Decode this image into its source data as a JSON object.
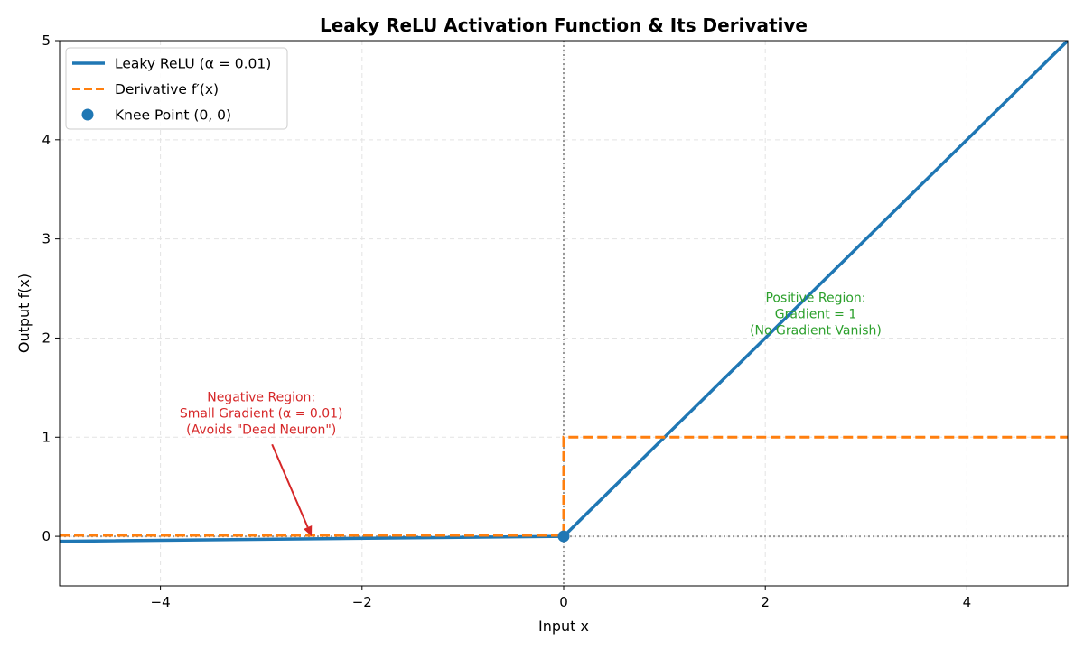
{
  "chart_data": {
    "type": "line",
    "title": "Leaky ReLU Activation Function & Its Derivative",
    "xlabel": "Input x",
    "ylabel": "Output f(x)",
    "xlim": [
      -5,
      5
    ],
    "ylim": [
      -0.5,
      5
    ],
    "x_ticks": [
      -4,
      -2,
      0,
      2,
      4
    ],
    "x_tick_labels": [
      "−4",
      "−2",
      "0",
      "2",
      "4"
    ],
    "y_ticks": [
      0,
      1,
      2,
      3,
      4,
      5
    ],
    "y_tick_labels": [
      "0",
      "1",
      "2",
      "3",
      "4",
      "5"
    ],
    "grid": true,
    "legend_position": "upper-left",
    "alpha": 0.01,
    "series": [
      {
        "name": "Leaky ReLU (α = 0.01)",
        "style": "solid",
        "color": "#1f77b4",
        "x": [
          -5,
          0,
          5
        ],
        "y": [
          -0.05,
          0,
          5
        ]
      },
      {
        "name": "Derivative f′(x)",
        "style": "dashed",
        "color": "#ff7f0e",
        "x": [
          -5,
          0,
          0,
          5
        ],
        "y": [
          0.01,
          0.01,
          1,
          1
        ]
      }
    ],
    "points": [
      {
        "name": "Knee Point (0, 0)",
        "x": 0,
        "y": 0,
        "color": "#1f77b4"
      }
    ],
    "reference_lines": [
      {
        "orientation": "horizontal",
        "value": 0,
        "color": "#999999",
        "style": "dotted"
      },
      {
        "orientation": "vertical",
        "value": 0,
        "color": "#999999",
        "style": "dotted"
      }
    ],
    "annotations": [
      {
        "lines": [
          "Negative Region:",
          "Small Gradient (α = 0.01)",
          "(Avoids \"Dead Neuron\")"
        ],
        "color": "#d62728",
        "text_x": -3.0,
        "text_y": 1.0,
        "arrow_to": [
          -2.5,
          0.0
        ]
      },
      {
        "lines": [
          "Positive Region:",
          "Gradient = 1",
          "(No Gradient Vanish)"
        ],
        "color": "#2ca02c",
        "text_x": 2.5,
        "text_y": 2.0
      }
    ]
  }
}
